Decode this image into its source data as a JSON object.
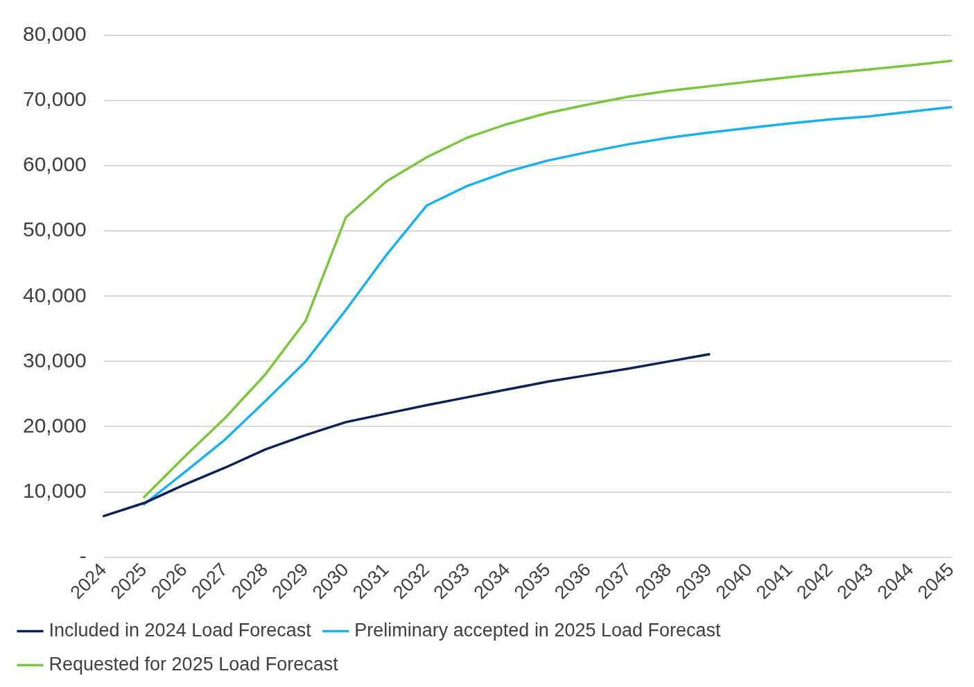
{
  "chart_data": {
    "type": "line",
    "categories": [
      "2024",
      "2025",
      "2026",
      "2027",
      "2028",
      "2029",
      "2030",
      "2031",
      "2032",
      "2033",
      "2034",
      "2035",
      "2036",
      "2037",
      "2038",
      "2039",
      "2040",
      "2041",
      "2042",
      "2043",
      "2044",
      "2045"
    ],
    "series": [
      {
        "name": "Included in 2024 Load Forecast",
        "color": "#0b2157",
        "values": [
          6300,
          8300,
          11100,
          13700,
          16500,
          18700,
          20700,
          22000,
          23300,
          24500,
          25700,
          26900,
          27900,
          28900,
          30000,
          31100,
          null,
          null,
          null,
          null,
          null,
          null
        ]
      },
      {
        "name": "Preliminary accepted in 2025 Load Forecast",
        "color": "#1ab0ef",
        "values": [
          null,
          8100,
          13000,
          18000,
          23900,
          30000,
          37900,
          46300,
          53900,
          56900,
          59100,
          60800,
          62100,
          63300,
          64300,
          65100,
          65800,
          66500,
          67100,
          67600,
          68300,
          69000
        ]
      },
      {
        "name": "Requested for 2025 Load Forecast",
        "color": "#7cc63f",
        "values": [
          null,
          9200,
          15400,
          21300,
          28000,
          36200,
          52100,
          57600,
          61300,
          64300,
          66400,
          68100,
          69400,
          70600,
          71500,
          72200,
          72900,
          73600,
          74200,
          74800,
          75400,
          76100
        ]
      }
    ],
    "ylim": [
      0,
      80000
    ],
    "yticks": [
      {
        "value": 0,
        "label": "-"
      },
      {
        "value": 10000,
        "label": "10,000"
      },
      {
        "value": 20000,
        "label": "20,000"
      },
      {
        "value": 30000,
        "label": "30,000"
      },
      {
        "value": 40000,
        "label": "40,000"
      },
      {
        "value": 50000,
        "label": "50,000"
      },
      {
        "value": 60000,
        "label": "60,000"
      },
      {
        "value": 70000,
        "label": "70,000"
      },
      {
        "value": 80000,
        "label": "80,000"
      }
    ],
    "grid": "y",
    "legend": "bottom",
    "marker": "none",
    "line_style": "solid"
  }
}
